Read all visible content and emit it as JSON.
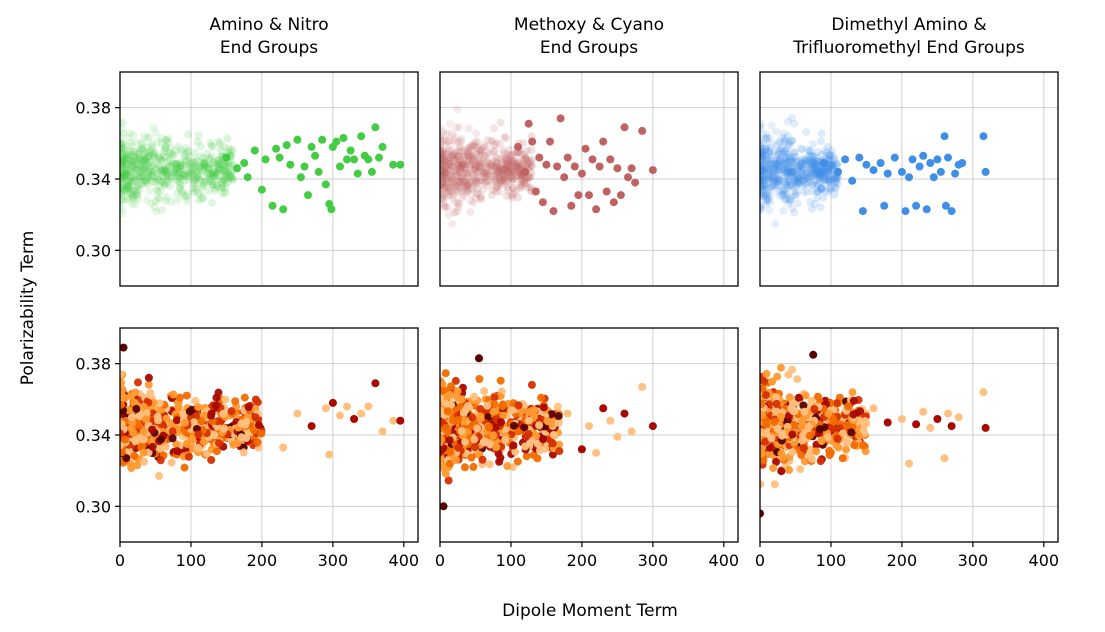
{
  "figure": {
    "xlabel": "Dipole Moment Term",
    "ylabel": "Polarizability Term"
  },
  "chart_data": [
    {
      "type": "scatter",
      "row": 0,
      "col": 0,
      "title_lines": [
        "Amino & Nitro",
        "End Groups"
      ],
      "xlim": [
        0,
        420
      ],
      "ylim": [
        0.28,
        0.4
      ],
      "xticks": [
        "0",
        "100",
        "200",
        "300",
        "400"
      ],
      "yticks": [
        "0.30",
        "0.34",
        "0.38"
      ],
      "grid": true,
      "color": "#44cc44",
      "cloud": {
        "x_range": [
          0,
          160
        ],
        "y_center": 0.345,
        "y_spread": 0.022
      },
      "points": [
        [
          150,
          0.352
        ],
        [
          165,
          0.346
        ],
        [
          175,
          0.349
        ],
        [
          180,
          0.341
        ],
        [
          190,
          0.356
        ],
        [
          200,
          0.334
        ],
        [
          205,
          0.351
        ],
        [
          215,
          0.325
        ],
        [
          220,
          0.357
        ],
        [
          225,
          0.352
        ],
        [
          230,
          0.323
        ],
        [
          235,
          0.359
        ],
        [
          240,
          0.348
        ],
        [
          250,
          0.362
        ],
        [
          255,
          0.341
        ],
        [
          260,
          0.347
        ],
        [
          265,
          0.331
        ],
        [
          270,
          0.358
        ],
        [
          275,
          0.353
        ],
        [
          280,
          0.344
        ],
        [
          285,
          0.362
        ],
        [
          290,
          0.337
        ],
        [
          295,
          0.326
        ],
        [
          298,
          0.323
        ],
        [
          300,
          0.358
        ],
        [
          305,
          0.361
        ],
        [
          310,
          0.347
        ],
        [
          315,
          0.363
        ],
        [
          320,
          0.351
        ],
        [
          325,
          0.356
        ],
        [
          330,
          0.351
        ],
        [
          335,
          0.343
        ],
        [
          340,
          0.364
        ],
        [
          345,
          0.353
        ],
        [
          350,
          0.351
        ],
        [
          355,
          0.344
        ],
        [
          360,
          0.369
        ],
        [
          365,
          0.352
        ],
        [
          370,
          0.358
        ],
        [
          385,
          0.348
        ],
        [
          395,
          0.348
        ]
      ]
    },
    {
      "type": "scatter",
      "row": 0,
      "col": 1,
      "title_lines": [
        "Methoxy & Cyano",
        "End Groups"
      ],
      "xlim": [
        0,
        420
      ],
      "ylim": [
        0.28,
        0.4
      ],
      "xticks": [
        "0",
        "100",
        "200",
        "300",
        "400"
      ],
      "yticks": [
        "0.30",
        "0.34",
        "0.38"
      ],
      "grid": true,
      "color": "#c06262",
      "cloud": {
        "x_range": [
          0,
          130
        ],
        "y_center": 0.345,
        "y_spread": 0.022
      },
      "points": [
        [
          110,
          0.358
        ],
        [
          120,
          0.344
        ],
        [
          125,
          0.371
        ],
        [
          130,
          0.361
        ],
        [
          135,
          0.333
        ],
        [
          140,
          0.352
        ],
        [
          145,
          0.327
        ],
        [
          150,
          0.348
        ],
        [
          155,
          0.361
        ],
        [
          160,
          0.322
        ],
        [
          165,
          0.347
        ],
        [
          170,
          0.374
        ],
        [
          175,
          0.341
        ],
        [
          180,
          0.352
        ],
        [
          185,
          0.325
        ],
        [
          190,
          0.347
        ],
        [
          195,
          0.331
        ],
        [
          200,
          0.343
        ],
        [
          205,
          0.357
        ],
        [
          210,
          0.331
        ],
        [
          215,
          0.351
        ],
        [
          220,
          0.323
        ],
        [
          225,
          0.347
        ],
        [
          230,
          0.361
        ],
        [
          235,
          0.333
        ],
        [
          240,
          0.351
        ],
        [
          245,
          0.327
        ],
        [
          250,
          0.346
        ],
        [
          255,
          0.331
        ],
        [
          260,
          0.369
        ],
        [
          265,
          0.341
        ],
        [
          270,
          0.346
        ],
        [
          275,
          0.338
        ],
        [
          285,
          0.367
        ],
        [
          300,
          0.345
        ]
      ]
    },
    {
      "type": "scatter",
      "row": 0,
      "col": 2,
      "title_lines": [
        "Dimethyl Amino &",
        "Trifluoromethyl End Groups"
      ],
      "xlim": [
        0,
        420
      ],
      "ylim": [
        0.28,
        0.4
      ],
      "xticks": [
        "0",
        "100",
        "200",
        "300",
        "400"
      ],
      "yticks": [
        "0.30",
        "0.34",
        "0.38"
      ],
      "grid": true,
      "color": "#3f8ee8",
      "cloud": {
        "x_range": [
          0,
          110
        ],
        "y_center": 0.345,
        "y_spread": 0.022
      },
      "points": [
        [
          90,
          0.349
        ],
        [
          110,
          0.344
        ],
        [
          120,
          0.351
        ],
        [
          130,
          0.339
        ],
        [
          140,
          0.352
        ],
        [
          145,
          0.322
        ],
        [
          150,
          0.348
        ],
        [
          160,
          0.345
        ],
        [
          170,
          0.349
        ],
        [
          175,
          0.325
        ],
        [
          180,
          0.343
        ],
        [
          190,
          0.352
        ],
        [
          200,
          0.344
        ],
        [
          205,
          0.322
        ],
        [
          210,
          0.341
        ],
        [
          215,
          0.351
        ],
        [
          220,
          0.325
        ],
        [
          225,
          0.347
        ],
        [
          230,
          0.353
        ],
        [
          235,
          0.323
        ],
        [
          240,
          0.349
        ],
        [
          245,
          0.341
        ],
        [
          250,
          0.351
        ],
        [
          255,
          0.344
        ],
        [
          260,
          0.364
        ],
        [
          262,
          0.325
        ],
        [
          265,
          0.352
        ],
        [
          270,
          0.322
        ],
        [
          275,
          0.343
        ],
        [
          280,
          0.348
        ],
        [
          285,
          0.349
        ],
        [
          315,
          0.364
        ],
        [
          318,
          0.344
        ]
      ]
    },
    {
      "type": "scatter",
      "row": 1,
      "col": 0,
      "title_lines": [],
      "xlim": [
        0,
        420
      ],
      "ylim": [
        0.28,
        0.4
      ],
      "xticks": [
        "0",
        "100",
        "200",
        "300",
        "400"
      ],
      "yticks": [
        "0.30",
        "0.34",
        "0.38"
      ],
      "grid": true,
      "palette": [
        "#5a0000",
        "#a80800",
        "#d63000",
        "#f26c00",
        "#ff9a30",
        "#ffc080"
      ],
      "cloud": {
        "x_range": [
          0,
          200
        ],
        "y_center": 0.345,
        "y_spread": 0.024
      },
      "points": [
        [
          5,
          0.389
        ],
        [
          230,
          0.333
        ],
        [
          250,
          0.352
        ],
        [
          270,
          0.345
        ],
        [
          290,
          0.355
        ],
        [
          295,
          0.329
        ],
        [
          300,
          0.358
        ],
        [
          310,
          0.351
        ],
        [
          320,
          0.356
        ],
        [
          330,
          0.349
        ],
        [
          340,
          0.352
        ],
        [
          350,
          0.356
        ],
        [
          360,
          0.369
        ],
        [
          370,
          0.342
        ],
        [
          385,
          0.348
        ],
        [
          395,
          0.348
        ]
      ]
    },
    {
      "type": "scatter",
      "row": 1,
      "col": 1,
      "title_lines": [],
      "xlim": [
        0,
        420
      ],
      "ylim": [
        0.28,
        0.4
      ],
      "xticks": [
        "0",
        "100",
        "200",
        "300",
        "400"
      ],
      "yticks": [
        "0.30",
        "0.34",
        "0.38"
      ],
      "grid": true,
      "palette": [
        "#5a0000",
        "#a80800",
        "#d63000",
        "#f26c00",
        "#ff9a30",
        "#ffc080"
      ],
      "cloud": {
        "x_range": [
          0,
          170
        ],
        "y_center": 0.345,
        "y_spread": 0.024
      },
      "points": [
        [
          5,
          0.3
        ],
        [
          55,
          0.383
        ],
        [
          180,
          0.352
        ],
        [
          200,
          0.332
        ],
        [
          210,
          0.345
        ],
        [
          220,
          0.33
        ],
        [
          230,
          0.355
        ],
        [
          240,
          0.348
        ],
        [
          250,
          0.339
        ],
        [
          260,
          0.352
        ],
        [
          270,
          0.342
        ],
        [
          285,
          0.367
        ],
        [
          300,
          0.345
        ]
      ]
    },
    {
      "type": "scatter",
      "row": 1,
      "col": 2,
      "title_lines": [],
      "xlim": [
        0,
        420
      ],
      "ylim": [
        0.28,
        0.4
      ],
      "xticks": [
        "0",
        "100",
        "200",
        "300",
        "400"
      ],
      "yticks": [
        "0.30",
        "0.34",
        "0.38"
      ],
      "grid": true,
      "palette": [
        "#5a0000",
        "#a80800",
        "#d63000",
        "#f26c00",
        "#ff9a30",
        "#ffc080"
      ],
      "cloud": {
        "x_range": [
          0,
          150
        ],
        "y_center": 0.345,
        "y_spread": 0.024
      },
      "points": [
        [
          0,
          0.296
        ],
        [
          75,
          0.385
        ],
        [
          160,
          0.355
        ],
        [
          180,
          0.347
        ],
        [
          200,
          0.349
        ],
        [
          210,
          0.324
        ],
        [
          220,
          0.346
        ],
        [
          230,
          0.353
        ],
        [
          240,
          0.344
        ],
        [
          250,
          0.349
        ],
        [
          260,
          0.327
        ],
        [
          265,
          0.352
        ],
        [
          270,
          0.345
        ],
        [
          280,
          0.35
        ],
        [
          315,
          0.364
        ],
        [
          318,
          0.344
        ]
      ]
    }
  ]
}
